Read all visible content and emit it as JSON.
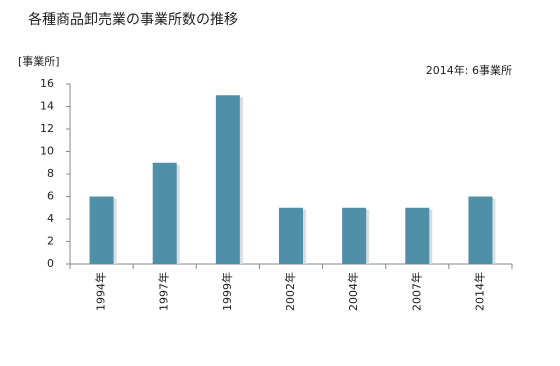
{
  "chart_data": {
    "type": "bar",
    "title": "各種商品卸売業の事業所数の推移",
    "y_label": "[事業所]",
    "annotation": "2014年: 6事業所",
    "categories": [
      "1994年",
      "1997年",
      "1999年",
      "2002年",
      "2004年",
      "2007年",
      "2014年"
    ],
    "values": [
      6,
      9,
      15,
      5,
      5,
      5,
      6
    ],
    "color": "#4f8fa8",
    "ylim": [
      0,
      16
    ],
    "yticks": [
      0,
      2,
      4,
      6,
      8,
      10,
      12,
      14,
      16
    ],
    "grid": false
  }
}
